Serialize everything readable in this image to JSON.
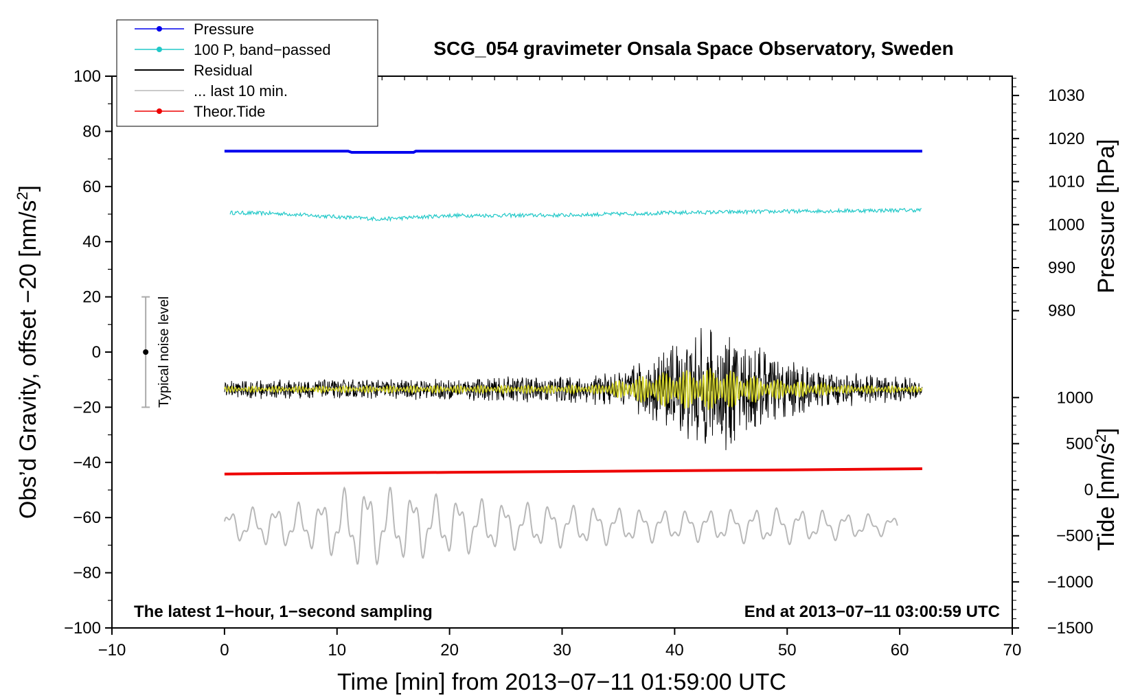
{
  "chart_data": {
    "type": "line",
    "title": "SCG_054 gravimeter Onsala Space Observatory, Sweden",
    "xlabel": "Time [min] from 2013−07−11 01:59:00 UTC",
    "ylabel_left_prefix": "Obs’d Gravity, offset −20 [nm/s",
    "ylabel_left_sup": "2",
    "ylabel_left_suffix": "]",
    "ylabel_right_pressure": "Pressure [hPa]",
    "ylabel_right_tide_prefix": "Tide [nm/s",
    "ylabel_right_tide_sup": "2",
    "ylabel_right_tide_suffix": "]",
    "xlim": [
      -10,
      70
    ],
    "ylim": [
      -100,
      100
    ],
    "x_ticks": [
      {
        "v": -10,
        "label": "−10"
      },
      {
        "v": 0,
        "label": "0"
      },
      {
        "v": 10,
        "label": "10"
      },
      {
        "v": 20,
        "label": "20"
      },
      {
        "v": 30,
        "label": "30"
      },
      {
        "v": 40,
        "label": "40"
      },
      {
        "v": 50,
        "label": "50"
      },
      {
        "v": 60,
        "label": "60"
      },
      {
        "v": 70,
        "label": "70"
      }
    ],
    "y_ticks": [
      {
        "v": 100,
        "label": "100"
      },
      {
        "v": 80,
        "label": "80"
      },
      {
        "v": 60,
        "label": "60"
      },
      {
        "v": 40,
        "label": "40"
      },
      {
        "v": 20,
        "label": "20"
      },
      {
        "v": 0,
        "label": "0"
      },
      {
        "v": -20,
        "label": "−20"
      },
      {
        "v": -40,
        "label": "−40"
      },
      {
        "v": -60,
        "label": "−60"
      },
      {
        "v": -80,
        "label": "−80"
      },
      {
        "v": -100,
        "label": "−100"
      }
    ],
    "pressure_axis": {
      "map_hpa_to_y": [
        [
          1030,
          93
        ],
        [
          980,
          15
        ]
      ],
      "ticks": [
        {
          "v": 1030,
          "label": "1030"
        },
        {
          "v": 1020,
          "label": "1020"
        },
        {
          "v": 1010,
          "label": "1010"
        },
        {
          "v": 1000,
          "label": "1000"
        },
        {
          "v": 990,
          "label": "990"
        },
        {
          "v": 980,
          "label": "980"
        }
      ]
    },
    "tide_axis": {
      "map_tide_to_y": [
        [
          1000,
          -16.5
        ],
        [
          -1500,
          -100
        ]
      ],
      "ticks": [
        {
          "v": 1000,
          "label": "1000"
        },
        {
          "v": 500,
          "label": "500"
        },
        {
          "v": 0,
          "label": "0"
        },
        {
          "v": -500,
          "label": "−500"
        },
        {
          "v": -1000,
          "label": "−1000"
        },
        {
          "v": -1500,
          "label": "−1500"
        }
      ]
    },
    "series": [
      {
        "name": "Pressure",
        "color": "#0000ee",
        "x": [
          0,
          11,
          11.3,
          16.8,
          17,
          62
        ],
        "y": [
          72.8,
          72.8,
          72.4,
          72.4,
          72.8,
          72.8
        ]
      },
      {
        "name": "100 P, band−passed",
        "color": "#20c8c8",
        "x": [
          0.5,
          5,
          10,
          14,
          20,
          30,
          40,
          50,
          62
        ],
        "y": [
          50.5,
          50.2,
          49,
          48.2,
          49.5,
          49.6,
          50.5,
          51,
          51.5
        ]
      },
      {
        "name": "Residual",
        "color": "#000000",
        "x_range": [
          0,
          62
        ],
        "baseline": -13.5,
        "envelope_peaks": [
          [
            0,
            3.5
          ],
          [
            20,
            4
          ],
          [
            35,
            6
          ],
          [
            38,
            13
          ],
          [
            41,
            22
          ],
          [
            44,
            24
          ],
          [
            47,
            17
          ],
          [
            50,
            12
          ],
          [
            53,
            7
          ],
          [
            62,
            4
          ]
        ]
      },
      {
        "name": "Residual (smoothed)",
        "color": "#d4d42a",
        "x_range": [
          0,
          62
        ],
        "baseline": -13.5,
        "envelope_peaks": [
          [
            0,
            1
          ],
          [
            33,
            1.5
          ],
          [
            37,
            5
          ],
          [
            40,
            7
          ],
          [
            44,
            8
          ],
          [
            48,
            4
          ],
          [
            55,
            1.5
          ],
          [
            62,
            1
          ]
        ]
      },
      {
        "name": "... last 10 min.",
        "color": "#b8b8b8",
        "x_range": [
          0,
          59.8
        ],
        "baseline": -63,
        "envelope_peaks": [
          [
            0,
            5
          ],
          [
            8,
            8
          ],
          [
            12,
            14
          ],
          [
            15,
            12
          ],
          [
            19,
            10
          ],
          [
            25,
            8
          ],
          [
            40,
            5
          ],
          [
            50,
            6
          ],
          [
            60,
            3
          ]
        ]
      },
      {
        "name": "Theor.Tide",
        "color": "#ee0000",
        "x": [
          0,
          10,
          20,
          30,
          40,
          50,
          62
        ],
        "y": [
          -44.2,
          -43.9,
          -43.6,
          -43.3,
          -43,
          -42.7,
          -42.3
        ]
      }
    ],
    "noise_bar": {
      "x": -7,
      "center": 0,
      "low": -20,
      "high": 20,
      "label": "Typical noise level"
    },
    "legend": [
      {
        "label": "Pressure",
        "color": "#0000ee",
        "marker": true
      },
      {
        "label": "100 P, band−passed",
        "color": "#20c8c8",
        "marker": true
      },
      {
        "label": "Residual",
        "color": "#000000",
        "marker": false
      },
      {
        "label": "... last 10 min.",
        "color": "#b8b8b8",
        "marker": false
      },
      {
        "label": "Theor.Tide",
        "color": "#ee0000",
        "marker": true
      }
    ],
    "legend_position": "top-left",
    "annotations": {
      "bottom_left": "The latest 1−hour, 1−second sampling",
      "bottom_right": "End at 2013−07−11 03:00:59 UTC"
    }
  }
}
